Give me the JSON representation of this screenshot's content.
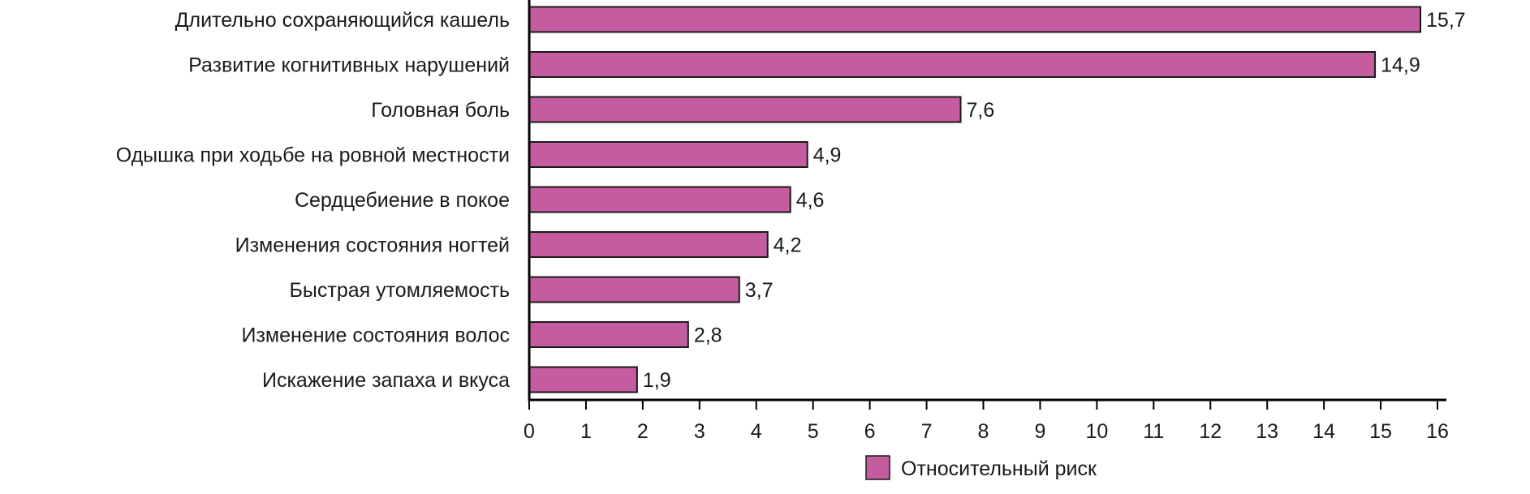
{
  "chart_data": {
    "type": "bar",
    "orientation": "horizontal",
    "categories": [
      "Длительно сохраняющийся кашель",
      "Развитие когнитивных нарушений",
      "Головная боль",
      "Одышка при ходьбе на ровной местности",
      "Сердцебиение в покое",
      "Изменения состояния ногтей",
      "Быстрая утомляемость",
      "Изменение состояния волос",
      "Искажение запаха и вкуса"
    ],
    "series": [
      {
        "name": "Относительный риск",
        "values": [
          15.7,
          14.9,
          7.6,
          4.9,
          4.6,
          4.2,
          3.7,
          2.8,
          1.9
        ],
        "value_labels": [
          "15,7",
          "14,9",
          "7,6",
          "4,9",
          "4,6",
          "4,2",
          "3,7",
          "2,8",
          "1,9"
        ]
      }
    ],
    "xlim": [
      0,
      16
    ],
    "xticks": [
      0,
      1,
      2,
      3,
      4,
      5,
      6,
      7,
      8,
      9,
      10,
      11,
      12,
      13,
      14,
      15,
      16
    ],
    "title": "",
    "xlabel": "",
    "ylabel": "",
    "grid": false,
    "legend_position": "bottom-center",
    "bar_color": "#c45c9f",
    "bar_stroke": "#1a1a1a"
  }
}
